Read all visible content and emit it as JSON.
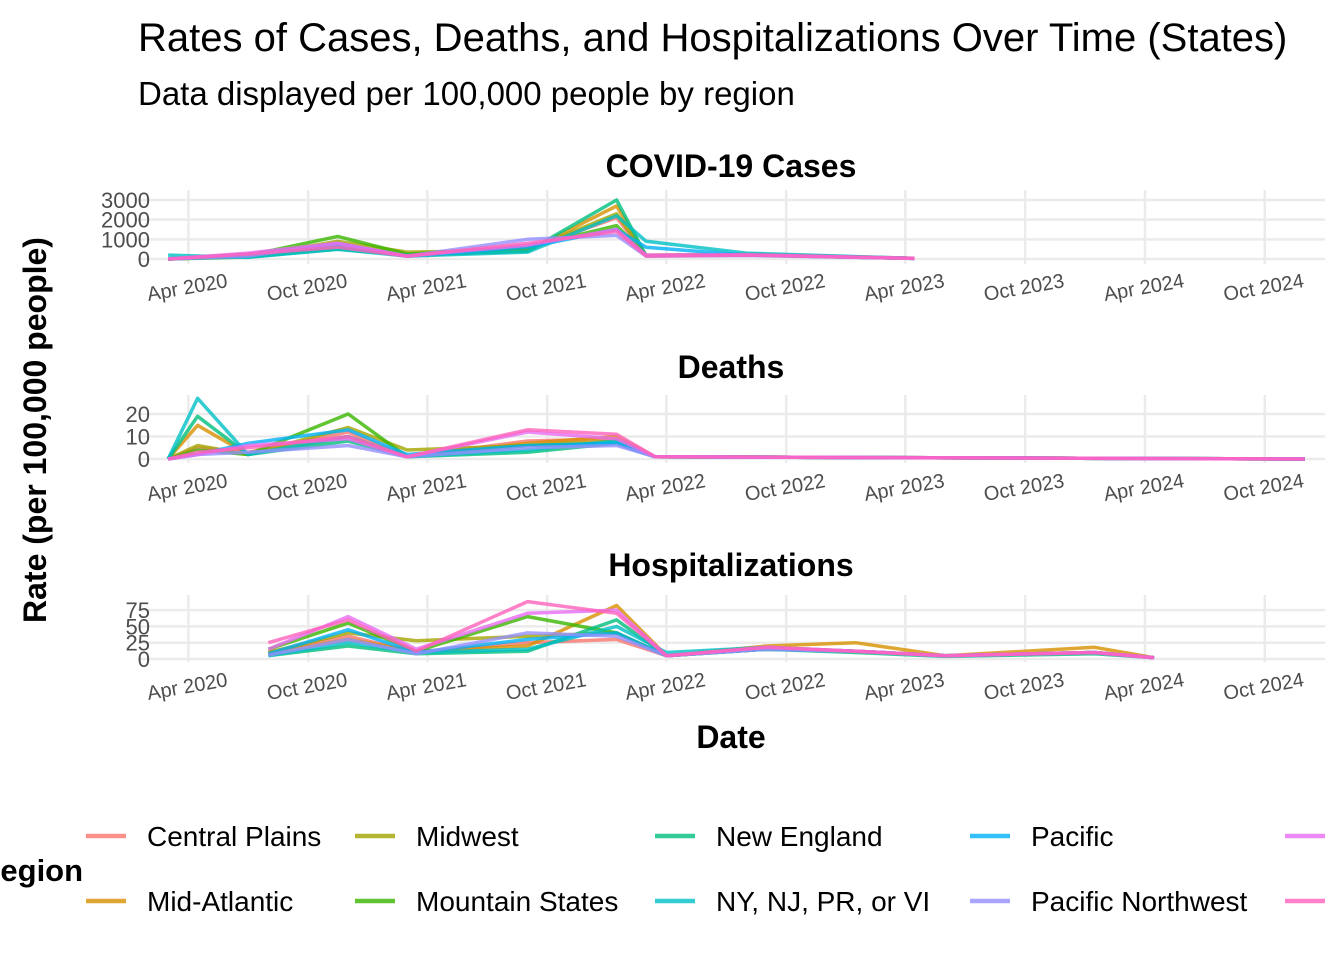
{
  "title": "Rates of Cases, Deaths, and Hospitalizations Over Time (States)",
  "subtitle": "Data displayed per 100,000 people by region",
  "chart_data": {
    "type": "line",
    "x_type": "date",
    "xlabel": "Date",
    "ylabel": "Rate (per 100,000 people)",
    "xlim": [
      "2020-01-15",
      "2025-01-01"
    ],
    "x_tick_labels": [
      "Apr 2020",
      "Oct 2020",
      "Apr 2021",
      "Oct 2021",
      "Apr 2022",
      "Oct 2022",
      "Apr 2023",
      "Oct 2023",
      "Apr 2024",
      "Oct 2024"
    ],
    "x_tick_dates": [
      "2020-04-01",
      "2020-10-01",
      "2021-04-01",
      "2021-10-01",
      "2022-04-01",
      "2022-10-01",
      "2023-04-01",
      "2023-10-01",
      "2024-04-01",
      "2024-10-01"
    ],
    "grid": true,
    "legend": {
      "title": "Region",
      "position": "bottom",
      "entries": [
        {
          "name": "Central Plains",
          "color": "#F8766D"
        },
        {
          "name": "Mid-Atlantic",
          "color": "#D89000"
        },
        {
          "name": "Midwest",
          "color": "#A3A500"
        },
        {
          "name": "Mountain States",
          "color": "#39B600"
        },
        {
          "name": "New England",
          "color": "#00BF7D"
        },
        {
          "name": "NY, NJ, PR, or VI",
          "color": "#00BFC4"
        },
        {
          "name": "Pacific",
          "color": "#00B0F6"
        },
        {
          "name": "Pacific Northwest",
          "color": "#9590FF"
        },
        {
          "name": "",
          "color": "#E76BF3"
        },
        {
          "name": "",
          "color": "#FF62BC"
        }
      ]
    },
    "panels": [
      {
        "title": "COVID-19 Cases",
        "ylim": [
          0,
          3000
        ],
        "yticks": [
          0,
          1000,
          2000,
          3000
        ],
        "series": [
          {
            "name": "Central Plains",
            "x": [
              "2020-03-01",
              "2020-07-01",
              "2020-11-15",
              "2021-03-01",
              "2021-09-01",
              "2022-01-15",
              "2022-03-01",
              "2022-08-01",
              "2023-04-15"
            ],
            "y": [
              0,
              200,
              800,
              150,
              500,
              2100,
              200,
              250,
              40
            ]
          },
          {
            "name": "Mid-Atlantic",
            "x": [
              "2020-03-01",
              "2020-07-01",
              "2020-11-15",
              "2021-03-01",
              "2021-09-01",
              "2022-01-15",
              "2022-03-01",
              "2022-08-01",
              "2023-04-15"
            ],
            "y": [
              0,
              150,
              600,
              200,
              400,
              2700,
              180,
              220,
              30
            ]
          },
          {
            "name": "Midwest",
            "x": [
              "2020-03-01",
              "2020-07-01",
              "2020-11-15",
              "2021-03-01",
              "2021-09-01",
              "2022-01-15",
              "2022-03-01",
              "2022-08-01",
              "2023-04-15"
            ],
            "y": [
              0,
              120,
              900,
              350,
              450,
              2300,
              160,
              200,
              30
            ]
          },
          {
            "name": "Mountain States",
            "x": [
              "2020-03-01",
              "2020-07-01",
              "2020-11-15",
              "2021-03-01",
              "2021-09-01",
              "2022-01-15",
              "2022-03-01",
              "2022-08-01",
              "2023-04-15"
            ],
            "y": [
              0,
              180,
              1150,
              250,
              600,
              1700,
              170,
              210,
              30
            ]
          },
          {
            "name": "New England",
            "x": [
              "2020-03-01",
              "2020-07-01",
              "2020-11-15",
              "2021-03-01",
              "2021-09-01",
              "2022-01-15",
              "2022-03-01",
              "2022-08-01",
              "2023-04-15"
            ],
            "y": [
              0,
              100,
              500,
              200,
              400,
              3000,
              160,
              200,
              30
            ]
          },
          {
            "name": "NY, NJ, PR, or VI",
            "x": [
              "2020-03-01",
              "2020-07-01",
              "2020-11-15",
              "2021-03-01",
              "2021-09-01",
              "2022-01-15",
              "2022-03-01",
              "2022-08-01",
              "2023-04-15"
            ],
            "y": [
              200,
              80,
              500,
              150,
              350,
              2200,
              900,
              300,
              30
            ]
          },
          {
            "name": "Pacific",
            "x": [
              "2020-03-01",
              "2020-07-01",
              "2020-11-15",
              "2021-03-01",
              "2021-09-01",
              "2022-01-15",
              "2022-03-01",
              "2022-08-01",
              "2023-04-15"
            ],
            "y": [
              0,
              250,
              700,
              150,
              600,
              1500,
              600,
              200,
              30
            ]
          },
          {
            "name": "Pacific Northwest",
            "x": [
              "2020-03-01",
              "2020-07-01",
              "2020-11-15",
              "2021-03-01",
              "2021-09-01",
              "2022-01-15",
              "2022-03-01",
              "2022-08-01",
              "2023-04-15"
            ],
            "y": [
              0,
              150,
              800,
              150,
              1000,
              1200,
              150,
              180,
              30
            ]
          },
          {
            "name": "",
            "x": [
              "2020-03-01",
              "2020-07-01",
              "2020-11-15",
              "2021-03-01",
              "2021-09-01",
              "2022-01-15",
              "2022-03-01",
              "2022-08-01",
              "2023-04-15"
            ],
            "y": [
              0,
              300,
              800,
              150,
              700,
              1500,
              200,
              220,
              30
            ]
          },
          {
            "name": "",
            "x": [
              "2020-03-01",
              "2020-07-01",
              "2020-11-15",
              "2021-03-01",
              "2021-09-01",
              "2022-01-15",
              "2022-03-01",
              "2022-08-01",
              "2023-04-15"
            ],
            "y": [
              0,
              250,
              600,
              150,
              800,
              1400,
              150,
              200,
              30
            ]
          }
        ]
      },
      {
        "title": "Deaths",
        "ylim": [
          0,
          28
        ],
        "yticks": [
          0,
          10,
          20
        ],
        "series": [
          {
            "name": "Central Plains",
            "x": [
              "2020-03-01",
              "2020-04-15",
              "2020-07-01",
              "2020-12-01",
              "2021-03-01",
              "2021-09-01",
              "2022-01-15",
              "2022-03-15",
              "2024-12-01"
            ],
            "y": [
              0,
              5,
              3,
              12,
              1,
              8,
              9,
              1,
              0
            ]
          },
          {
            "name": "Mid-Atlantic",
            "x": [
              "2020-03-01",
              "2020-04-15",
              "2020-07-01",
              "2020-12-01",
              "2021-03-01",
              "2021-09-01",
              "2022-01-15",
              "2022-03-15",
              "2024-12-01"
            ],
            "y": [
              0,
              15,
              2,
              10,
              1,
              7,
              10,
              1,
              0
            ]
          },
          {
            "name": "Midwest",
            "x": [
              "2020-03-01",
              "2020-04-15",
              "2020-07-01",
              "2020-12-01",
              "2021-03-01",
              "2021-09-01",
              "2022-01-15",
              "2022-03-15",
              "2024-12-01"
            ],
            "y": [
              0,
              6,
              2,
              14,
              4,
              6,
              8,
              1,
              0
            ]
          },
          {
            "name": "Mountain States",
            "x": [
              "2020-03-01",
              "2020-04-15",
              "2020-07-01",
              "2020-12-01",
              "2021-03-01",
              "2021-09-01",
              "2022-01-15",
              "2022-03-15",
              "2024-12-01"
            ],
            "y": [
              0,
              4,
              2,
              20,
              1,
              6,
              7,
              1,
              0
            ]
          },
          {
            "name": "New England",
            "x": [
              "2020-03-01",
              "2020-04-15",
              "2020-07-01",
              "2020-12-01",
              "2021-03-01",
              "2021-09-01",
              "2022-01-15",
              "2022-03-15",
              "2024-12-01"
            ],
            "y": [
              0,
              19,
              2,
              8,
              1,
              3,
              7,
              1,
              0
            ]
          },
          {
            "name": "NY, NJ, PR, or VI",
            "x": [
              "2020-03-01",
              "2020-04-15",
              "2020-07-01",
              "2020-12-01",
              "2021-03-01",
              "2021-09-01",
              "2022-01-15",
              "2022-03-15",
              "2024-12-01"
            ],
            "y": [
              0,
              27,
              2,
              10,
              1,
              4,
              8,
              1,
              0
            ]
          },
          {
            "name": "Pacific",
            "x": [
              "2020-03-01",
              "2020-04-15",
              "2020-07-01",
              "2020-12-01",
              "2021-03-01",
              "2021-09-01",
              "2022-01-15",
              "2022-03-15",
              "2024-12-01"
            ],
            "y": [
              0,
              2,
              7,
              13,
              2,
              6,
              7,
              1,
              0
            ]
          },
          {
            "name": "Pacific Northwest",
            "x": [
              "2020-03-01",
              "2020-04-15",
              "2020-07-01",
              "2020-12-01",
              "2021-03-01",
              "2021-09-01",
              "2022-01-15",
              "2022-03-15",
              "2024-12-01"
            ],
            "y": [
              0,
              2,
              3,
              6,
              1,
              5,
              6,
              1,
              0
            ]
          },
          {
            "name": "",
            "x": [
              "2020-03-01",
              "2020-04-15",
              "2020-07-01",
              "2020-12-01",
              "2021-03-01",
              "2021-09-01",
              "2022-01-15",
              "2022-03-15",
              "2024-12-01"
            ],
            "y": [
              0,
              2,
              6,
              9,
              1,
              12,
              9,
              1,
              0
            ]
          },
          {
            "name": "",
            "x": [
              "2020-03-01",
              "2020-04-15",
              "2020-07-01",
              "2020-12-01",
              "2021-03-01",
              "2021-09-01",
              "2022-01-15",
              "2022-03-15",
              "2024-12-01"
            ],
            "y": [
              0,
              3,
              5,
              10,
              1,
              13,
              11,
              1,
              0
            ]
          }
        ]
      },
      {
        "title": "Hospitalizations",
        "ylim": [
          0,
          92
        ],
        "yticks": [
          0,
          25,
          50,
          75
        ],
        "ytick_labels": [
          "0",
          "25",
          "50",
          "75"
        ],
        "series": [
          {
            "name": "Central Plains",
            "x": [
              "2020-08-01",
              "2020-12-01",
              "2021-03-15",
              "2021-09-01",
              "2022-01-15",
              "2022-04-01",
              "2022-09-01",
              "2023-01-15",
              "2023-06-01",
              "2024-01-15",
              "2024-04-15"
            ],
            "y": [
              10,
              35,
              10,
              25,
              30,
              5,
              15,
              12,
              5,
              10,
              2
            ]
          },
          {
            "name": "Mid-Atlantic",
            "x": [
              "2020-08-01",
              "2020-12-01",
              "2021-03-15",
              "2021-09-01",
              "2022-01-15",
              "2022-04-01",
              "2022-09-01",
              "2023-01-15",
              "2023-06-01",
              "2024-01-15",
              "2024-04-15"
            ],
            "y": [
              8,
              30,
              12,
              20,
              82,
              5,
              20,
              25,
              5,
              18,
              2
            ]
          },
          {
            "name": "Midwest",
            "x": [
              "2020-08-01",
              "2020-12-01",
              "2021-03-15",
              "2021-09-01",
              "2022-01-15",
              "2022-04-01",
              "2022-09-01",
              "2023-01-15",
              "2023-06-01",
              "2024-01-15",
              "2024-04-15"
            ],
            "y": [
              10,
              40,
              28,
              35,
              40,
              5,
              15,
              12,
              5,
              10,
              2
            ]
          },
          {
            "name": "Mountain States",
            "x": [
              "2020-08-01",
              "2020-12-01",
              "2021-03-15",
              "2021-09-01",
              "2022-01-15",
              "2022-04-01",
              "2022-09-01",
              "2023-01-15",
              "2023-06-01",
              "2024-01-15",
              "2024-04-15"
            ],
            "y": [
              15,
              55,
              12,
              65,
              40,
              5,
              15,
              12,
              5,
              10,
              2
            ]
          },
          {
            "name": "New England",
            "x": [
              "2020-08-01",
              "2020-12-01",
              "2021-03-15",
              "2021-09-01",
              "2022-01-15",
              "2022-04-01",
              "2022-09-01",
              "2023-01-15",
              "2023-06-01",
              "2024-01-15",
              "2024-04-15"
            ],
            "y": [
              5,
              20,
              8,
              12,
              60,
              5,
              15,
              10,
              4,
              8,
              2
            ]
          },
          {
            "name": "NY, NJ, PR, or VI",
            "x": [
              "2020-08-01",
              "2020-12-01",
              "2021-03-15",
              "2021-09-01",
              "2022-01-15",
              "2022-04-01",
              "2022-09-01",
              "2023-01-15",
              "2023-06-01",
              "2024-01-15",
              "2024-04-15"
            ],
            "y": [
              5,
              25,
              10,
              15,
              50,
              10,
              18,
              12,
              5,
              10,
              2
            ]
          },
          {
            "name": "Pacific",
            "x": [
              "2020-08-01",
              "2020-12-01",
              "2021-03-15",
              "2021-09-01",
              "2022-01-15",
              "2022-04-01",
              "2022-09-01",
              "2023-01-15",
              "2023-06-01",
              "2024-01-15",
              "2024-04-15"
            ],
            "y": [
              8,
              45,
              10,
              30,
              40,
              5,
              15,
              12,
              5,
              10,
              2
            ]
          },
          {
            "name": "Pacific Northwest",
            "x": [
              "2020-08-01",
              "2020-12-01",
              "2021-03-15",
              "2021-09-01",
              "2022-01-15",
              "2022-04-01",
              "2022-09-01",
              "2023-01-15",
              "2023-06-01",
              "2024-01-15",
              "2024-04-15"
            ],
            "y": [
              6,
              30,
              8,
              40,
              35,
              5,
              15,
              12,
              5,
              10,
              2
            ]
          },
          {
            "name": "",
            "x": [
              "2020-08-01",
              "2020-12-01",
              "2021-03-15",
              "2021-09-01",
              "2022-01-15",
              "2022-04-01",
              "2022-09-01",
              "2023-01-15",
              "2023-06-01",
              "2024-01-15",
              "2024-04-15"
            ],
            "y": [
              15,
              65,
              15,
              70,
              75,
              5,
              18,
              12,
              5,
              10,
              2
            ]
          },
          {
            "name": "",
            "x": [
              "2020-08-01",
              "2020-12-01",
              "2021-03-15",
              "2021-09-01",
              "2022-01-15",
              "2022-04-01",
              "2022-09-01",
              "2023-01-15",
              "2023-06-01",
              "2024-01-15",
              "2024-04-15"
            ],
            "y": [
              25,
              60,
              12,
              88,
              70,
              5,
              18,
              12,
              5,
              10,
              2
            ]
          }
        ]
      }
    ]
  }
}
